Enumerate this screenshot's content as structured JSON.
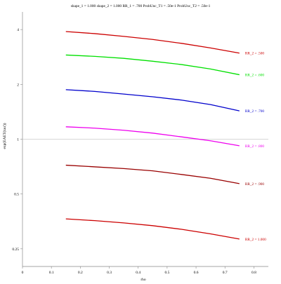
{
  "chart_data": {
    "type": "line",
    "title": "shape_1 = 1.000  shape_2 = 1.000  RR_1 = .700  ProbUnc_T1 = .50e-1  ProbUnc_T2 = .50e-1",
    "xlabel": "rho",
    "ylabel": "exp(EAET(tau'))",
    "xlim": [
      0,
      0.85
    ],
    "ylim": [
      0.2,
      5.0
    ],
    "yscale": "log",
    "x_ticks": [
      0,
      0.1,
      0.2,
      0.3,
      0.4,
      0.5,
      0.6,
      0.7,
      0.8
    ],
    "x_tick_labels": [
      "0",
      "0.1",
      "0.2",
      "0.3",
      "0.4",
      "0.5",
      "0.6",
      "0.7",
      "0.8"
    ],
    "y_ticks": [
      0.25,
      0.5,
      1,
      2,
      4
    ],
    "y_tick_labels": [
      "0.25",
      "0.5",
      "1",
      "2",
      "4"
    ],
    "reference_line_y": 1,
    "grid": false,
    "x": [
      0.15,
      0.25,
      0.35,
      0.45,
      0.55,
      0.65,
      0.75
    ],
    "series": [
      {
        "name": "RR_2 = .500",
        "color": "#cc0000",
        "values": [
          3.9,
          3.8,
          3.67,
          3.53,
          3.36,
          3.17,
          2.97
        ]
      },
      {
        "name": "RR_2 = .600",
        "color": "#00e000",
        "values": [
          2.9,
          2.85,
          2.78,
          2.68,
          2.57,
          2.43,
          2.26
        ]
      },
      {
        "name": "RR_2 = .700",
        "color": "#0000cc",
        "values": [
          1.87,
          1.83,
          1.77,
          1.71,
          1.64,
          1.55,
          1.43
        ]
      },
      {
        "name": "RR_2 = .800",
        "color": "#ee00ee",
        "values": [
          1.17,
          1.15,
          1.12,
          1.08,
          1.03,
          0.98,
          0.92
        ]
      },
      {
        "name": "RR_2 = .900",
        "color": "#990000",
        "values": [
          0.72,
          0.705,
          0.69,
          0.67,
          0.64,
          0.61,
          0.57
        ]
      },
      {
        "name": "RR_2 = 1.000",
        "color": "#cc0000",
        "values": [
          0.365,
          0.357,
          0.347,
          0.335,
          0.32,
          0.302,
          0.283
        ]
      }
    ]
  }
}
